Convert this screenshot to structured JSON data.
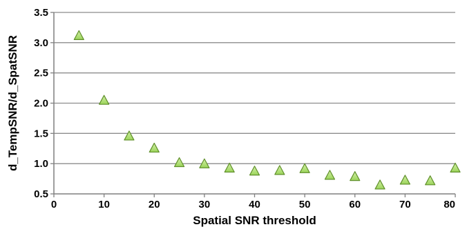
{
  "chart_data": {
    "type": "scatter",
    "title": "",
    "xlabel": "Spatial SNR threshold",
    "ylabel": "d_TempSNR/d_SpatSNR",
    "xlim": [
      0,
      80
    ],
    "ylim": [
      0.5,
      3.5
    ],
    "x_ticks": [
      0,
      10,
      20,
      30,
      40,
      50,
      60,
      70,
      80
    ],
    "y_ticks": [
      0.5,
      1.0,
      1.5,
      2.0,
      2.5,
      3.0,
      3.5
    ],
    "x_tick_labels": [
      "0",
      "10",
      "20",
      "30",
      "40",
      "50",
      "60",
      "70",
      "80"
    ],
    "y_tick_labels": [
      "0.5",
      "1.0",
      "1.5",
      "2.0",
      "2.5",
      "3.0",
      "3.5"
    ],
    "grid": "horizontal",
    "legend": "none",
    "marker": "triangle",
    "colors": {
      "marker_fill": "#9bd45a",
      "marker_stroke": "#5f8f2a",
      "grid": "#8c8c8c",
      "axis": "#7f7f7f"
    },
    "series": [
      {
        "x": [
          5,
          10,
          15,
          20,
          25,
          30,
          35,
          40,
          45,
          50,
          55,
          60,
          65,
          70,
          75,
          80
        ],
        "y": [
          3.11,
          2.04,
          1.45,
          1.25,
          1.01,
          0.99,
          0.92,
          0.87,
          0.88,
          0.91,
          0.8,
          0.78,
          0.64,
          0.72,
          0.71,
          0.92
        ]
      }
    ]
  }
}
